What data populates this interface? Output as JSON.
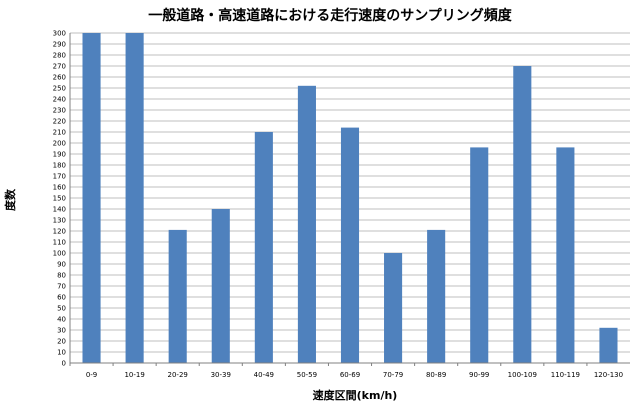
{
  "chart_data": {
    "type": "bar",
    "title": "一般道路・高速道路における走行速度のサンプリング頻度",
    "xlabel": "速度区間(km/h)",
    "ylabel": "度数",
    "categories": [
      "0-9",
      "10-19",
      "20-29",
      "30-39",
      "40-49",
      "50-59",
      "60-69",
      "70-79",
      "80-89",
      "90-99",
      "100-109",
      "110-119",
      "120-130"
    ],
    "values": [
      300,
      300,
      121,
      140,
      210,
      252,
      214,
      100,
      121,
      196,
      270,
      196,
      32
    ],
    "ylim": [
      0,
      300
    ],
    "ytick_step": 10,
    "grid": true,
    "bar_color": "#4f81bd"
  }
}
